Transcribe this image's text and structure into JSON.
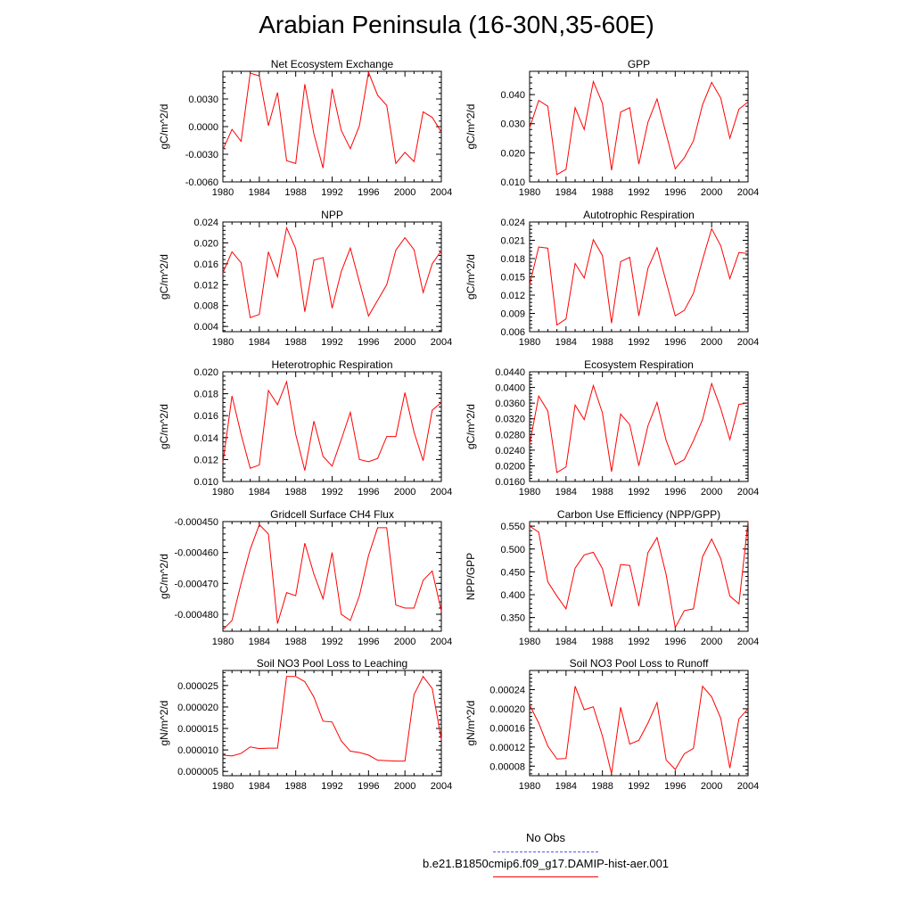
{
  "title": "Arabian Peninsula (16-30N,35-60E)",
  "colors": {
    "series": "#ff0000",
    "obs": "#5555ff",
    "axis": "#000000"
  },
  "legend": [
    {
      "name": "No Obs",
      "color": "#5555ff",
      "style": "dashed"
    },
    {
      "name": "b.e21.B1850cmip6.f09_g17.DAMIP-hist-aer.001",
      "color": "#ff0000",
      "style": "solid"
    }
  ],
  "chart_data": [
    {
      "type": "line",
      "title": "Net Ecosystem Exchange",
      "ylabel": "gC/m^2/d",
      "xlim": [
        1980,
        2004
      ],
      "ylim": [
        -0.006,
        0.006
      ],
      "xticks": [
        "1980",
        "1984",
        "1988",
        "1992",
        "1996",
        "2000",
        "2004"
      ],
      "yticks": [
        "-0.0060",
        "-0.0030",
        "0.0000",
        "0.0030"
      ],
      "ytick_values": [
        -0.006,
        -0.003,
        0,
        0.003
      ],
      "x": [
        1980,
        1981,
        1982,
        1983,
        1984,
        1985,
        1986,
        1987,
        1988,
        1989,
        1990,
        1991,
        1992,
        1993,
        1994,
        1995,
        1996,
        1997,
        1998,
        1999,
        2000,
        2001,
        2002,
        2003,
        2004
      ],
      "values": [
        -0.0025,
        -0.0003,
        -0.0016,
        0.0058,
        0.0055,
        0.0001,
        0.0037,
        -0.0037,
        -0.004,
        0.0046,
        -0.0008,
        -0.0045,
        0.0041,
        -0.0004,
        -0.0024,
        0.0001,
        0.0059,
        0.0034,
        0.0023,
        -0.004,
        -0.0028,
        -0.0038,
        0.0016,
        0.001,
        -0.0006
      ]
    },
    {
      "type": "line",
      "title": "GPP",
      "ylabel": "gC/m^2/d",
      "xlim": [
        1980,
        2004
      ],
      "ylim": [
        0.01,
        0.048
      ],
      "xticks": [
        "1980",
        "1984",
        "1988",
        "1992",
        "1996",
        "2000",
        "2004"
      ],
      "yticks": [
        "0.010",
        "0.020",
        "0.030",
        "0.040"
      ],
      "ytick_values": [
        0.01,
        0.02,
        0.03,
        0.04
      ],
      "x": [
        1980,
        1981,
        1982,
        1983,
        1984,
        1985,
        1986,
        1987,
        1988,
        1989,
        1990,
        1991,
        1992,
        1993,
        1994,
        1995,
        1996,
        1997,
        1998,
        1999,
        2000,
        2001,
        2002,
        2003,
        2004
      ],
      "values": [
        0.0285,
        0.038,
        0.036,
        0.0125,
        0.0143,
        0.0355,
        0.028,
        0.0445,
        0.037,
        0.014,
        0.034,
        0.0355,
        0.0161,
        0.0305,
        0.0385,
        0.0265,
        0.0145,
        0.0183,
        0.0241,
        0.0365,
        0.0442,
        0.0388,
        0.025,
        0.035,
        0.0375
      ]
    },
    {
      "type": "line",
      "title": "NPP",
      "ylabel": "gC/m^2/d",
      "xlim": [
        1980,
        2004
      ],
      "ylim": [
        0.003,
        0.024
      ],
      "xticks": [
        "1980",
        "1984",
        "1988",
        "1992",
        "1996",
        "2000",
        "2004"
      ],
      "yticks": [
        "0.004",
        "0.008",
        "0.012",
        "0.016",
        "0.020",
        "0.024"
      ],
      "ytick_values": [
        0.004,
        0.008,
        0.012,
        0.016,
        0.02,
        0.024
      ],
      "x": [
        1980,
        1981,
        1982,
        1983,
        1984,
        1985,
        1986,
        1987,
        1988,
        1989,
        1990,
        1991,
        1992,
        1993,
        1994,
        1995,
        1996,
        1997,
        1998,
        1999,
        2000,
        2001,
        2002,
        2003,
        2004
      ],
      "values": [
        0.0143,
        0.0183,
        0.0162,
        0.0057,
        0.0063,
        0.0183,
        0.0135,
        0.0229,
        0.0189,
        0.0068,
        0.0167,
        0.0172,
        0.0075,
        0.0145,
        0.019,
        0.0125,
        0.006,
        0.009,
        0.012,
        0.0186,
        0.021,
        0.0187,
        0.0105,
        0.016,
        0.0185
      ]
    },
    {
      "type": "line",
      "title": "Autotrophic Respiration",
      "ylabel": "gC/m^2/d",
      "xlim": [
        1980,
        2004
      ],
      "ylim": [
        0.006,
        0.024
      ],
      "xticks": [
        "1980",
        "1984",
        "1988",
        "1992",
        "1996",
        "2000",
        "2004"
      ],
      "yticks": [
        "0.006",
        "0.009",
        "0.012",
        "0.015",
        "0.018",
        "0.021",
        "0.024"
      ],
      "ytick_values": [
        0.006,
        0.009,
        0.012,
        0.015,
        0.018,
        0.021,
        0.024
      ],
      "x": [
        1980,
        1981,
        1982,
        1983,
        1984,
        1985,
        1986,
        1987,
        1988,
        1989,
        1990,
        1991,
        1992,
        1993,
        1994,
        1995,
        1996,
        1997,
        1998,
        1999,
        2000,
        2001,
        2002,
        2003,
        2004
      ],
      "values": [
        0.0137,
        0.0199,
        0.0197,
        0.0071,
        0.0081,
        0.0172,
        0.0148,
        0.0211,
        0.0185,
        0.0074,
        0.0175,
        0.0182,
        0.0086,
        0.0164,
        0.0198,
        0.0142,
        0.0086,
        0.0095,
        0.0123,
        0.0178,
        0.0229,
        0.0201,
        0.0147,
        0.019,
        0.0188
      ]
    },
    {
      "type": "line",
      "title": "Heterotrophic Respiration",
      "ylabel": "gC/m^2/d",
      "xlim": [
        1980,
        2004
      ],
      "ylim": [
        0.01,
        0.02
      ],
      "xticks": [
        "1980",
        "1984",
        "1988",
        "1992",
        "1996",
        "2000",
        "2004"
      ],
      "yticks": [
        "0.010",
        "0.012",
        "0.014",
        "0.016",
        "0.018",
        "0.020"
      ],
      "ytick_values": [
        0.01,
        0.012,
        0.014,
        0.016,
        0.018,
        0.02
      ],
      "x": [
        1980,
        1981,
        1982,
        1983,
        1984,
        1985,
        1986,
        1987,
        1988,
        1989,
        1990,
        1991,
        1992,
        1993,
        1994,
        1995,
        1996,
        1997,
        1998,
        1999,
        2000,
        2001,
        2002,
        2003,
        2004
      ],
      "values": [
        0.0117,
        0.0178,
        0.0143,
        0.0112,
        0.0115,
        0.0183,
        0.017,
        0.0191,
        0.0143,
        0.011,
        0.0155,
        0.0123,
        0.0114,
        0.0138,
        0.0163,
        0.012,
        0.0118,
        0.0121,
        0.0141,
        0.0141,
        0.0181,
        0.0145,
        0.0119,
        0.0165,
        0.0172
      ]
    },
    {
      "type": "line",
      "title": "Ecosystem Respiration",
      "ylabel": "gC/m^2/d",
      "xlim": [
        1980,
        2004
      ],
      "ylim": [
        0.016,
        0.044
      ],
      "xticks": [
        "1980",
        "1984",
        "1988",
        "1992",
        "1996",
        "2000",
        "2004"
      ],
      "yticks": [
        "0.0160",
        "0.0200",
        "0.0240",
        "0.0280",
        "0.0320",
        "0.0360",
        "0.0400",
        "0.0440"
      ],
      "ytick_values": [
        0.016,
        0.02,
        0.024,
        0.028,
        0.032,
        0.036,
        0.04,
        0.044
      ],
      "x": [
        1980,
        1981,
        1982,
        1983,
        1984,
        1985,
        1986,
        1987,
        1988,
        1989,
        1990,
        1991,
        1992,
        1993,
        1994,
        1995,
        1996,
        1997,
        1998,
        1999,
        2000,
        2001,
        2002,
        2003,
        2004
      ],
      "values": [
        0.0255,
        0.0378,
        0.034,
        0.0183,
        0.0197,
        0.0355,
        0.0318,
        0.0405,
        0.0335,
        0.0185,
        0.0332,
        0.0305,
        0.02,
        0.0302,
        0.0362,
        0.0265,
        0.0203,
        0.0216,
        0.0264,
        0.0318,
        0.041,
        0.0346,
        0.0267,
        0.0357,
        0.036
      ]
    },
    {
      "type": "line",
      "title": "Gridcell Surface CH4 Flux",
      "ylabel": "gC/m^2/d",
      "xlim": [
        1980,
        2004
      ],
      "ylim": [
        -0.0004855,
        -0.00045
      ],
      "xticks": [
        "1980",
        "1984",
        "1988",
        "1992",
        "1996",
        "2000",
        "2004"
      ],
      "yticks": [
        "-0.000480",
        "-0.000470",
        "-0.000460",
        "-0.000450"
      ],
      "ytick_values": [
        -0.00048,
        -0.00047,
        -0.00046,
        -0.00045
      ],
      "x": [
        1980,
        1981,
        1982,
        1983,
        1984,
        1985,
        1986,
        1987,
        1988,
        1989,
        1990,
        1991,
        1992,
        1993,
        1994,
        1995,
        1996,
        1997,
        1998,
        1999,
        2000,
        2001,
        2002,
        2003,
        2004
      ],
      "values": [
        -0.000485,
        -0.000482,
        -0.00047,
        -0.000459,
        -0.000451,
        -0.000454,
        -0.000483,
        -0.000473,
        -0.000474,
        -0.000457,
        -0.000467,
        -0.000475,
        -0.00046,
        -0.00048,
        -0.000482,
        -0.000474,
        -0.000461,
        -0.000452,
        -0.000452,
        -0.000477,
        -0.000478,
        -0.000478,
        -0.000469,
        -0.000466,
        -0.000479
      ]
    },
    {
      "type": "line",
      "title": "Carbon Use Efficiency (NPP/GPP)",
      "ylabel": "NPP/GPP",
      "xlim": [
        1980,
        2004
      ],
      "ylim": [
        0.32,
        0.56
      ],
      "xticks": [
        "1980",
        "1984",
        "1988",
        "1992",
        "1996",
        "2000",
        "2004"
      ],
      "yticks": [
        "0.350",
        "0.400",
        "0.450",
        "0.500",
        "0.550"
      ],
      "ytick_values": [
        0.35,
        0.4,
        0.45,
        0.5,
        0.55
      ],
      "x": [
        1980,
        1981,
        1982,
        1983,
        1984,
        1985,
        1986,
        1987,
        1988,
        1989,
        1990,
        1991,
        1992,
        1993,
        1994,
        1995,
        1996,
        1997,
        1998,
        1999,
        2000,
        2001,
        2002,
        2003,
        2004
      ],
      "values": [
        0.55,
        0.537,
        0.428,
        0.397,
        0.369,
        0.458,
        0.487,
        0.493,
        0.457,
        0.374,
        0.466,
        0.464,
        0.375,
        0.492,
        0.525,
        0.444,
        0.328,
        0.365,
        0.369,
        0.483,
        0.522,
        0.479,
        0.397,
        0.38,
        0.56
      ]
    },
    {
      "type": "line",
      "title": "Soil NO3 Pool Loss to Leaching",
      "ylabel": "gN/m^2/d",
      "xlim": [
        1980,
        2004
      ],
      "ylim": [
        4e-06,
        2.85e-05
      ],
      "xticks": [
        "1980",
        "1984",
        "1988",
        "1992",
        "1996",
        "2000",
        "2004"
      ],
      "yticks": [
        "0.000005",
        "0.000010",
        "0.000015",
        "0.000020",
        "0.000025"
      ],
      "ytick_values": [
        5e-06,
        1e-05,
        1.5e-05,
        2e-05,
        2.5e-05
      ],
      "x": [
        1980,
        1981,
        1982,
        1983,
        1984,
        1985,
        1986,
        1987,
        1988,
        1989,
        1990,
        1991,
        1992,
        1993,
        1994,
        1995,
        1996,
        1997,
        1998,
        1999,
        2000,
        2001,
        2002,
        2003,
        2004
      ],
      "values": [
        8.8e-06,
        8.6e-06,
        9.2e-06,
        1.07e-05,
        1.03e-05,
        1.04e-05,
        1.04e-05,
        2.71e-05,
        2.71e-05,
        2.59e-05,
        2.23e-05,
        1.67e-05,
        1.65e-05,
        1.21e-05,
        9.7e-06,
        9.4e-06,
        8.8e-06,
        7.6e-06,
        7.5e-06,
        7.4e-06,
        7.4e-06,
        2.29e-05,
        2.71e-05,
        2.43e-05,
        1.24e-05
      ]
    },
    {
      "type": "line",
      "title": "Soil NO3 Pool Loss to Runoff",
      "ylabel": "gN/m^2/d",
      "xlim": [
        1980,
        2004
      ],
      "ylim": [
        6e-05,
        0.00028
      ],
      "xticks": [
        "1980",
        "1984",
        "1988",
        "1992",
        "1996",
        "2000",
        "2004"
      ],
      "yticks": [
        "0.00008",
        "0.00012",
        "0.00016",
        "0.00020",
        "0.00024"
      ],
      "ytick_values": [
        8e-05,
        0.00012,
        0.00016,
        0.0002,
        0.00024
      ],
      "x": [
        1980,
        1981,
        1982,
        1983,
        1984,
        1985,
        1986,
        1987,
        1988,
        1989,
        1990,
        1991,
        1992,
        1993,
        1994,
        1995,
        1996,
        1997,
        1998,
        1999,
        2000,
        2001,
        2002,
        2003,
        2004
      ],
      "values": [
        0.000208,
        0.00017,
        0.000122,
        9.5e-05,
        9.6e-05,
        0.000247,
        0.000198,
        0.000204,
        0.000143,
        6.4e-05,
        0.000203,
        0.000126,
        0.000134,
        0.00017,
        0.000213,
        9.3e-05,
        7.3e-05,
        0.000106,
        0.000117,
        0.000247,
        0.000225,
        0.00018,
        7.6e-05,
        0.000179,
        0.0002
      ]
    }
  ]
}
